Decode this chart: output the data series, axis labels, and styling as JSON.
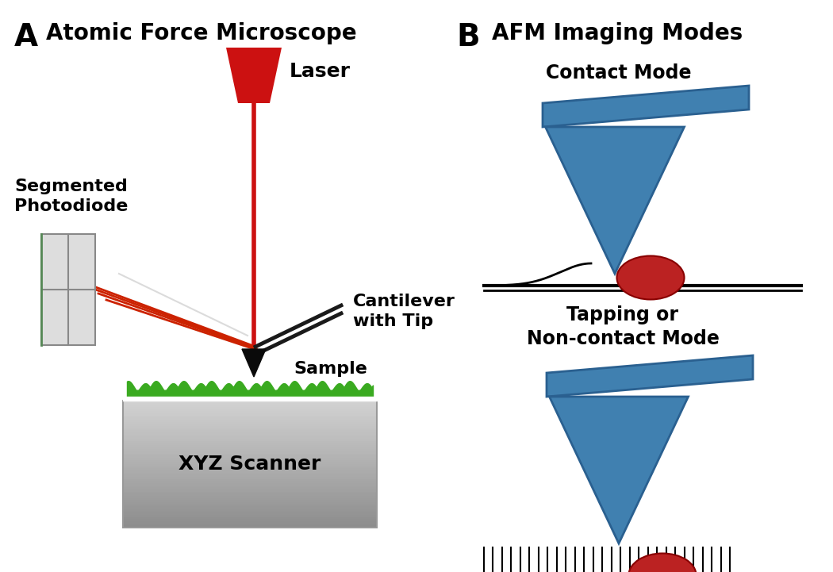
{
  "bg_color": "#ffffff",
  "label_A": "A",
  "label_B": "B",
  "title_A": "Atomic Force Microscope",
  "title_B": "AFM Imaging Modes",
  "label_laser": "Laser",
  "label_photodiode": "Segmented\nPhotodiode",
  "label_cantilever": "Cantilever\nwith Tip",
  "label_sample": "Sample",
  "label_scanner": "XYZ Scanner",
  "label_contact": "Contact Mode",
  "label_tapping": "Tapping or\nNon-contact Mode",
  "laser_color": "#cc1111",
  "blue_color": "#4080b0",
  "blue_dark": "#2a6090",
  "sample_color": "#3aaa20",
  "beam_color": "#cc2200",
  "red_ball_color": "#bb2222",
  "red_ball_dark": "#880000"
}
